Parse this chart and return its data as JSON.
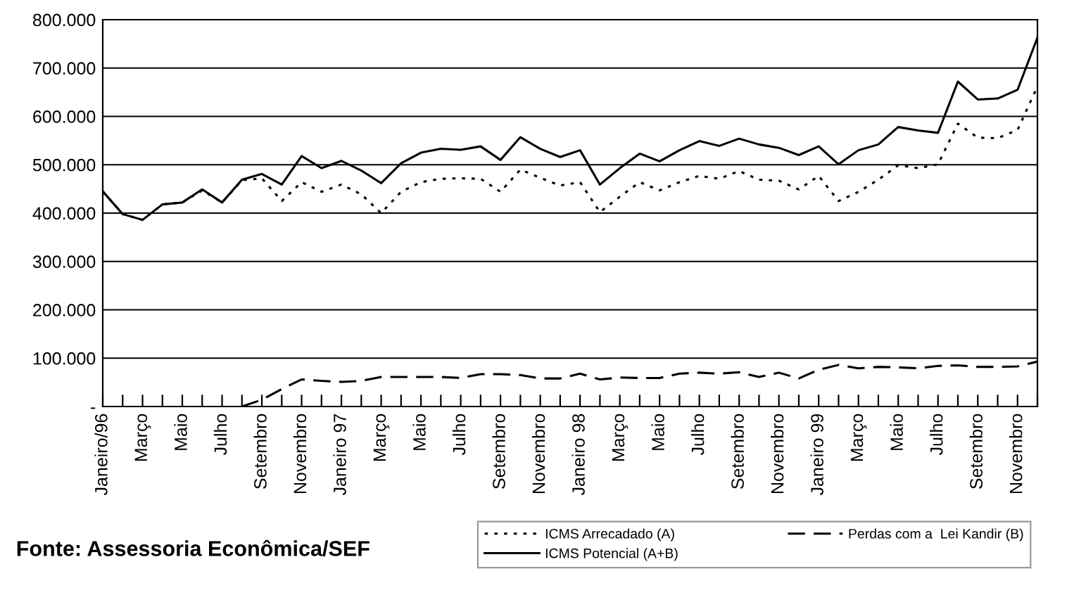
{
  "chart_data": {
    "type": "line",
    "categories": [
      "Janeiro/96",
      null,
      "Março",
      null,
      "Maio",
      null,
      "Julho",
      null,
      "Setembro",
      null,
      "Novembro",
      null,
      "Janeiro 97",
      null,
      "Março",
      null,
      "Maio",
      null,
      "Julho",
      null,
      "Setembro",
      null,
      "Novembro",
      null,
      "Janeiro 98",
      null,
      "Março",
      null,
      "Maio",
      null,
      "Julho",
      null,
      "Setembro",
      null,
      "Novembro",
      null,
      "Janeiro 99",
      null,
      "Março",
      null,
      "Maio",
      null,
      "Julho",
      null,
      "Setembro",
      null,
      "Novembro",
      null
    ],
    "series": [
      {
        "name": "ICMS Arrecadado (A)",
        "color": "#000000",
        "line_style": "dotted",
        "values": [
          445,
          398,
          386,
          418,
          422,
          447,
          422,
          468,
          472,
          425,
          464,
          444,
          459,
          439,
          400,
          444,
          464,
          471,
          472,
          471,
          444,
          490,
          473,
          457,
          464,
          402,
          434,
          464,
          447,
          464,
          477,
          471,
          487,
          469,
          467,
          449,
          477,
          425,
          444,
          469,
          499,
          493,
          501,
          585,
          556,
          555,
          572,
          662
        ]
      },
      {
        "name": "Perdas com a  Lei Kandir (B)",
        "color": "#000000",
        "line_style": "dashed",
        "values": [
          null,
          null,
          null,
          null,
          null,
          null,
          null,
          0,
          14,
          36,
          56,
          53,
          51,
          53,
          61,
          61,
          61,
          61,
          59,
          67,
          67,
          65,
          58,
          58,
          68,
          56,
          60,
          59,
          59,
          68,
          70,
          68,
          71,
          61,
          70,
          58,
          76,
          86,
          79,
          82,
          81,
          79,
          84,
          85,
          82,
          82,
          83,
          93
        ]
      },
      {
        "name": "ICMS Potencial (A+B)",
        "color": "#000000",
        "line_style": "solid",
        "values": [
          445,
          398,
          386,
          418,
          422,
          449,
          422,
          469,
          481,
          459,
          518,
          493,
          508,
          488,
          462,
          503,
          525,
          533,
          531,
          538,
          510,
          557,
          533,
          516,
          530,
          459,
          493,
          523,
          507,
          530,
          549,
          539,
          554,
          542,
          535,
          520,
          538,
          501,
          530,
          542,
          578,
          571,
          566,
          672,
          635,
          637,
          655,
          763
        ]
      }
    ],
    "ylim": [
      0,
      800
    ],
    "yticks": [
      {
        "value": 0,
        "label": "-"
      },
      {
        "value": 100,
        "label": "100.000"
      },
      {
        "value": 200,
        "label": "200.000"
      },
      {
        "value": 300,
        "label": "300.000"
      },
      {
        "value": 400,
        "label": "400.000"
      },
      {
        "value": 500,
        "label": "500.000"
      },
      {
        "value": 600,
        "label": "600.000"
      },
      {
        "value": 700,
        "label": "700.000"
      },
      {
        "value": 800,
        "label": "800.000"
      }
    ],
    "grid": "y",
    "legend": "bottom right",
    "marker": "none",
    "annotations": [
      "Fonte: Assessoria Econômica/SEF"
    ]
  }
}
